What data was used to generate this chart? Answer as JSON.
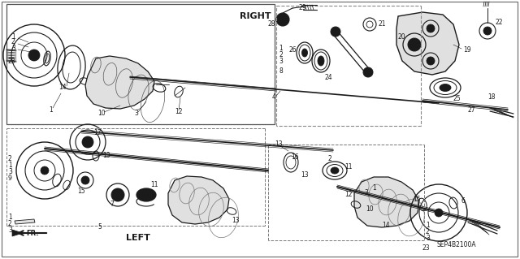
{
  "bg_color": "#ffffff",
  "diagram_id": "SEP4B2100A",
  "right_label": "RIGHT",
  "left_label": "LEFT",
  "fr_label": "FR.",
  "fig_width": 6.4,
  "fig_height": 3.19,
  "dpi": 100,
  "line_color": "#1a1a1a",
  "gray_fill": "#c8c8c8",
  "light_gray": "#e0e0e0",
  "border_color": "#444444"
}
